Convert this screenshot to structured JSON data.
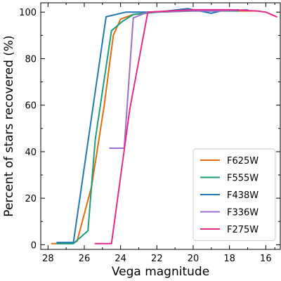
{
  "chart_data": {
    "type": "line",
    "xlabel": "Vega magnitude",
    "ylabel": "Percent of stars recovered (%)",
    "xlim": [
      28.4,
      15.2
    ],
    "ylim": [
      -2,
      104
    ],
    "x_ticks": [
      28,
      26,
      24,
      22,
      20,
      18,
      16
    ],
    "x_minor_ticks": [
      27,
      25,
      23,
      21,
      19,
      17,
      15.5
    ],
    "y_ticks": [
      0,
      20,
      40,
      60,
      80,
      100
    ],
    "y_minor_ticks": [
      10,
      30,
      50,
      70,
      90
    ],
    "legend_position": "bottom-right",
    "series": [
      {
        "name": "F625W",
        "color": "#e66a0c",
        "x": [
          27.8,
          26.7,
          26.4,
          25.6,
          24.9,
          24.4,
          24.0,
          23.3,
          22.0,
          20.0,
          18.5,
          17.5,
          16.5
        ],
        "y": [
          0.5,
          0.5,
          1.5,
          25,
          60,
          90,
          97,
          99,
          100,
          100.5,
          100.5,
          100.5,
          100.5
        ]
      },
      {
        "name": "F555W",
        "color": "#1a9e77",
        "x": [
          27.5,
          26.6,
          25.8,
          25.4,
          24.5,
          23.9,
          23.3,
          22.0,
          20.0,
          18.5,
          17.5
        ],
        "y": [
          0.5,
          0.5,
          6,
          45,
          92,
          96,
          99,
          100,
          100.5,
          100.5,
          100.5
        ]
      },
      {
        "name": "F438W",
        "color": "#1f77b4",
        "x": [
          27.5,
          26.6,
          24.8,
          23.7,
          22.0,
          20.3,
          19.0,
          18.5,
          17.5
        ],
        "y": [
          1,
          1,
          98,
          100,
          100,
          101.5,
          99.5,
          100.5,
          101
        ]
      },
      {
        "name": "F336W",
        "color": "#9a6fcf",
        "x": [
          24.6,
          23.8,
          23.3,
          22.5,
          20.5,
          18.5,
          17.0
        ],
        "y": [
          41.5,
          41.5,
          97.5,
          100,
          100.5,
          100.5,
          101
        ]
      },
      {
        "name": "F275W",
        "color": "#e7298a",
        "x": [
          25.4,
          24.5,
          23.5,
          22.5,
          20.0,
          18.0,
          16.5,
          16.0,
          15.4
        ],
        "y": [
          0.5,
          0.5,
          58,
          100,
          101,
          101,
          100.5,
          100,
          98
        ]
      }
    ]
  }
}
